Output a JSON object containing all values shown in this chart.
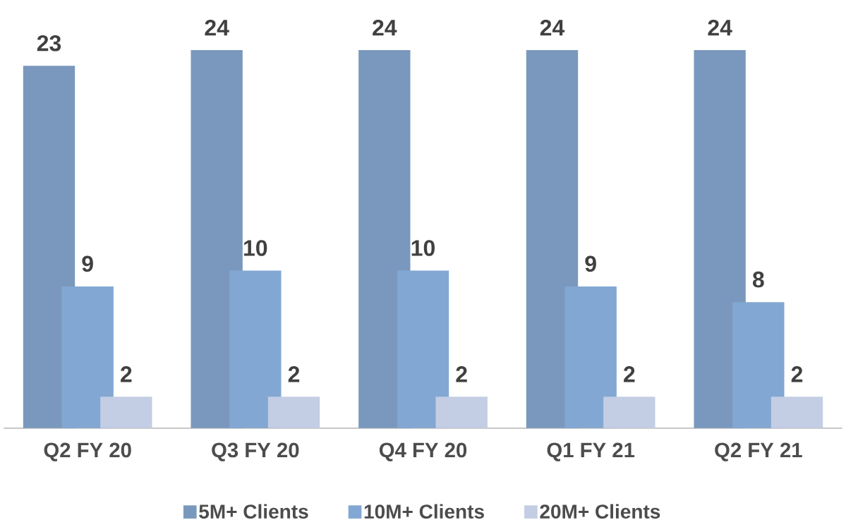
{
  "chart_data": {
    "type": "bar",
    "categories": [
      "Q2  FY 20",
      "Q3  FY 20",
      "Q4  FY 20",
      "Q1  FY 21",
      "Q2  FY 21"
    ],
    "series": [
      {
        "name": "5M+ Clients",
        "color": "#7a98bd",
        "values": [
          23,
          24,
          24,
          24,
          24
        ]
      },
      {
        "name": "10M+ Clients",
        "color": "#82a7d2",
        "values": [
          9,
          10,
          10,
          9,
          8
        ]
      },
      {
        "name": "20M+ Clients",
        "color": "#c3cde3",
        "values": [
          2,
          2,
          2,
          2,
          2
        ]
      }
    ],
    "data_labels": true,
    "legend": "bottom",
    "grid": false
  }
}
